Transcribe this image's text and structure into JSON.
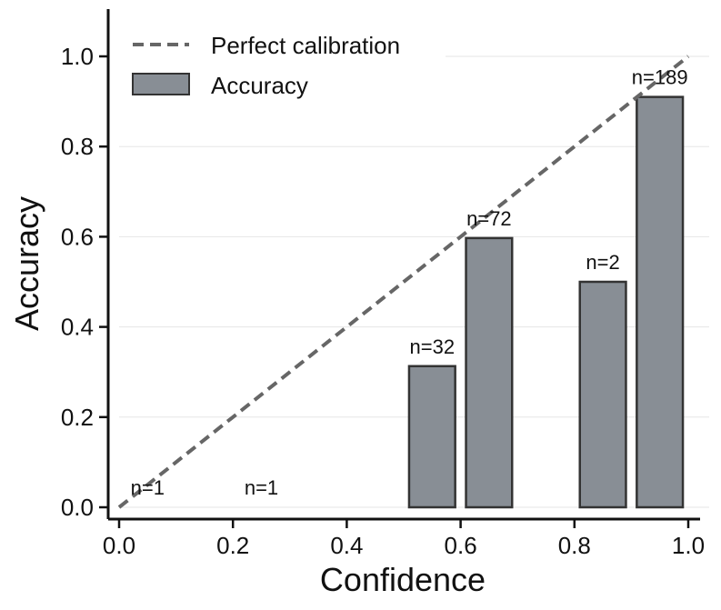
{
  "chart_data": {
    "type": "bar",
    "title": "",
    "xlabel": "Confidence",
    "ylabel": "Accuracy",
    "xlim": [
      0.0,
      1.0
    ],
    "ylim": [
      0.0,
      1.1
    ],
    "bin_width": 0.1,
    "bins": [
      {
        "center": 0.05,
        "accuracy": 0.0,
        "label": "n=1"
      },
      {
        "center": 0.25,
        "accuracy": 0.0,
        "label": "n=1"
      },
      {
        "center": 0.55,
        "accuracy": 0.313,
        "label": "n=32"
      },
      {
        "center": 0.65,
        "accuracy": 0.597,
        "label": "n=72"
      },
      {
        "center": 0.85,
        "accuracy": 0.5,
        "label": "n=2"
      },
      {
        "center": 0.95,
        "accuracy": 0.91,
        "label": "n=189"
      }
    ],
    "reference_line": {
      "name": "Perfect calibration",
      "points": [
        [
          0.0,
          0.0
        ],
        [
          1.0,
          1.0
        ]
      ],
      "style": "dashed"
    },
    "series_name": "Accuracy",
    "xticks": [
      "0.0",
      "0.2",
      "0.4",
      "0.6",
      "0.8",
      "1.0"
    ],
    "yticks": [
      "0.0",
      "0.2",
      "0.4",
      "0.6",
      "0.8",
      "1.0"
    ],
    "legend": {
      "position": "top-left",
      "entries": [
        "Perfect calibration",
        "Accuracy"
      ]
    },
    "grid": "horizontal",
    "colors": {
      "bar_fill": "#888e95",
      "bar_edge": "#333333",
      "reference_line": "#666666",
      "grid": "#e6e6e6",
      "axis": "#111111"
    }
  }
}
